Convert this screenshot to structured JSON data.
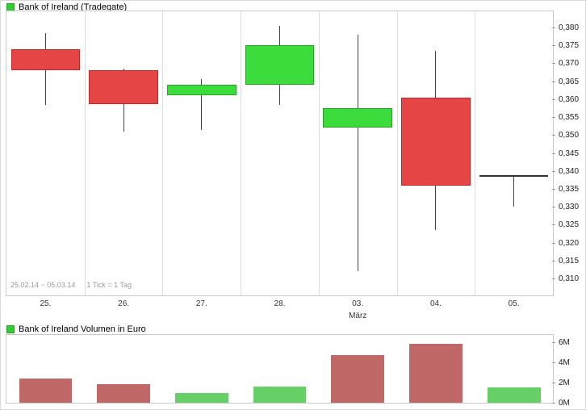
{
  "colors": {
    "up_fill": "#3ddc3d",
    "up_border": "#23a623",
    "down_fill": "#e64545",
    "down_border": "#c22727",
    "doji": "#333333",
    "wick": "#444444",
    "grid": "#dddddd",
    "plot_border": "#c9c9c9",
    "legend_square": "#33cc33",
    "vol_up": "#66cf66",
    "vol_down": "#c06868",
    "tick": "#999999"
  },
  "chart_data": [
    {
      "type": "candlestick",
      "title": "Bank of Ireland (Tradegate)",
      "date_range": "25.02.14 − 05.03.14",
      "tick_note": "1 Tick = 1 Tag",
      "x_labels": [
        "25.",
        "26.",
        "27.",
        "28.",
        "03.",
        "04.",
        "05."
      ],
      "month_label": "März",
      "month_label_index": 4,
      "y_tick_labels": [
        "0,380",
        "0,375",
        "0,370",
        "0,365",
        "0,360",
        "0,355",
        "0,350",
        "0,345",
        "0,340",
        "0,335",
        "0,330",
        "0,325",
        "0,320",
        "0,315",
        "0,310"
      ],
      "ylim": [
        0.3053,
        0.3845
      ],
      "grid": "vertical",
      "legend_position": "top-left",
      "candles": [
        {
          "date": "25.",
          "open": 0.374,
          "high": 0.3785,
          "low": 0.3585,
          "close": 0.368
        },
        {
          "date": "26.",
          "open": 0.368,
          "high": 0.3685,
          "low": 0.351,
          "close": 0.3585
        },
        {
          "date": "27.",
          "open": 0.361,
          "high": 0.3655,
          "low": 0.3515,
          "close": 0.364
        },
        {
          "date": "28.",
          "open": 0.364,
          "high": 0.3805,
          "low": 0.3585,
          "close": 0.375
        },
        {
          "date": "03.",
          "open": 0.352,
          "high": 0.378,
          "low": 0.312,
          "close": 0.3575
        },
        {
          "date": "04.",
          "open": 0.3605,
          "high": 0.3735,
          "low": 0.3235,
          "close": 0.336
        },
        {
          "date": "05.",
          "open": 0.3385,
          "high": 0.3385,
          "low": 0.33,
          "close": 0.3385
        }
      ]
    },
    {
      "type": "bar",
      "title": "Bank of Ireland Volumen in Euro",
      "categories": [
        "25.",
        "26.",
        "27.",
        "28.",
        "03.",
        "04.",
        "05."
      ],
      "values": [
        2.4,
        1.8,
        1.0,
        1.6,
        4.7,
        5.8,
        1.5
      ],
      "unit": "M",
      "directions": [
        "down",
        "down",
        "up",
        "up",
        "down",
        "down",
        "up"
      ],
      "y_tick_labels": [
        "6M",
        "4M",
        "2M",
        "0M"
      ],
      "y_tick_values": [
        6,
        4,
        2,
        0
      ],
      "ylim": [
        0,
        6.7
      ],
      "legend_position": "top-left"
    }
  ]
}
